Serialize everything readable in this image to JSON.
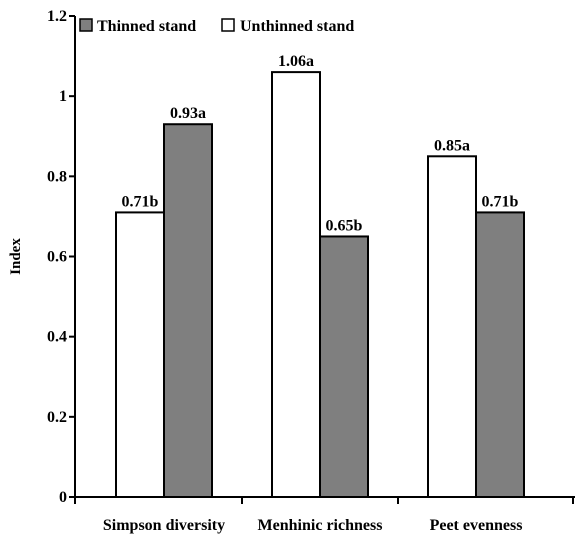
{
  "chart_data": {
    "type": "bar",
    "categories": [
      "Simpson diversity",
      "Menhinic richness",
      "Peet evenness"
    ],
    "series": [
      {
        "name": "Thinned stand",
        "color": "#7f7f7f",
        "values": [
          0.93,
          0.65,
          0.71
        ],
        "labels": [
          "0.93a",
          "0.65b",
          "0.71b"
        ]
      },
      {
        "name": "Unthinned stand",
        "color": "#ffffff",
        "values": [
          0.71,
          1.06,
          0.85
        ],
        "labels": [
          "0.71b",
          "1.06a",
          "0.85a"
        ]
      }
    ],
    "bar_order": [
      [
        "Unthinned stand",
        "Thinned stand"
      ],
      [
        "Unthinned stand",
        "Thinned stand"
      ],
      [
        "Unthinned stand",
        "Thinned stand"
      ]
    ],
    "ylabel": "Index",
    "ylim": [
      0,
      1.2
    ],
    "yticks": [
      0,
      0.2,
      0.4,
      0.6,
      0.8,
      1,
      1.2
    ],
    "ytick_labels": [
      "0",
      "0.2",
      "0.4",
      "0.6",
      "0.8",
      "1",
      "1.2"
    ],
    "grid": false,
    "legend_position": "top-left"
  }
}
